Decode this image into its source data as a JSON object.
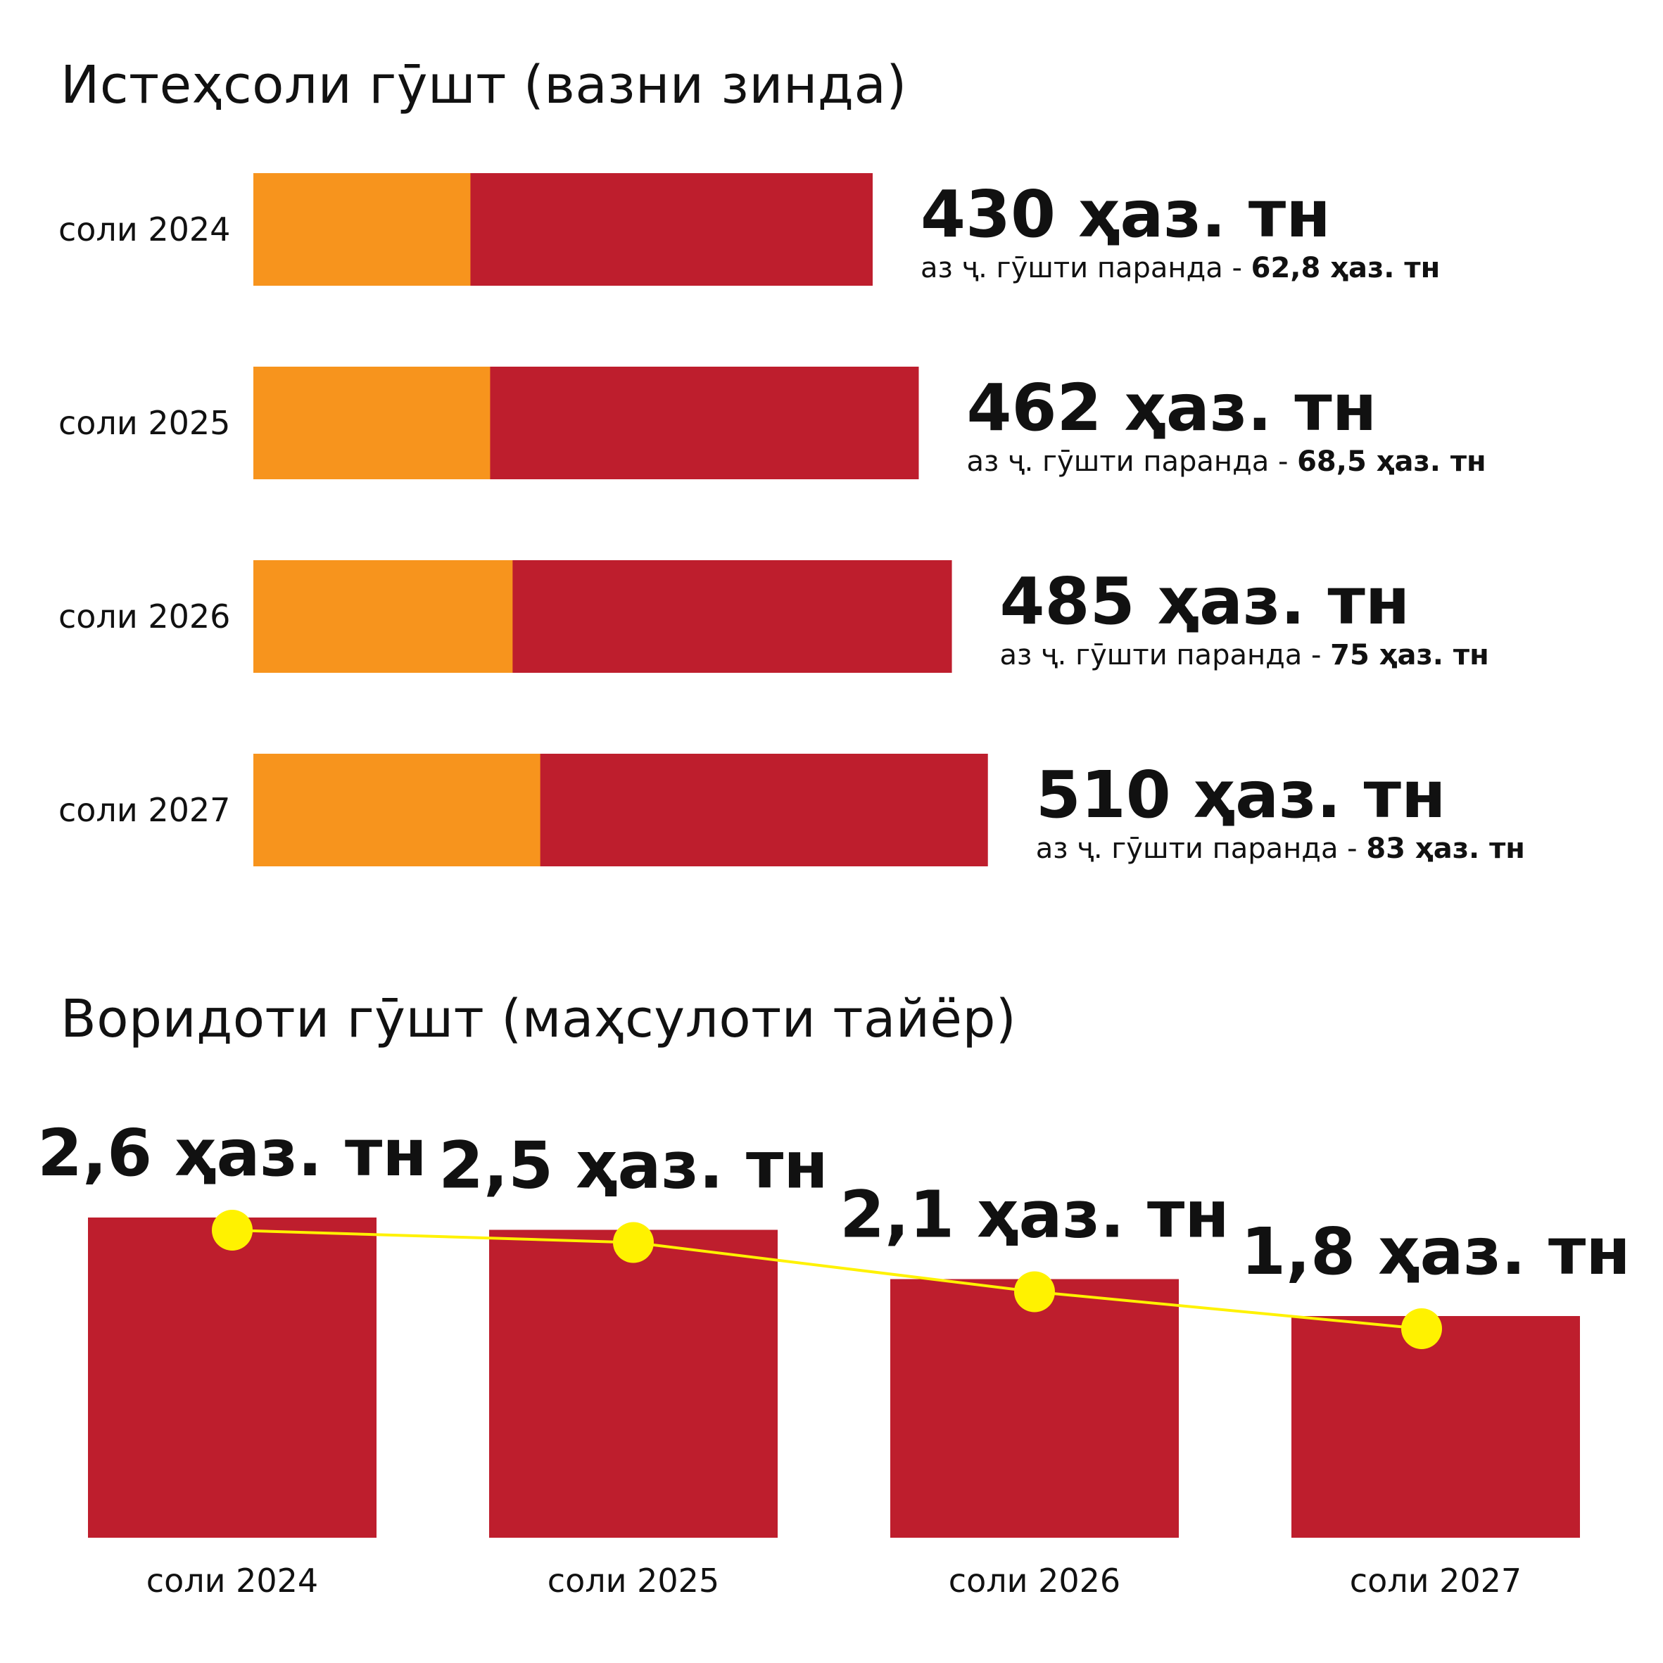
{
  "colors": {
    "red": "#BE1E2D",
    "orange": "#F7941D",
    "yellow": "#FFF200",
    "text": "#111111"
  },
  "chart_data": [
    {
      "type": "bar",
      "orientation": "horizontal",
      "stacked": true,
      "title": "Истеҳсоли гӯшт (вазни зинда)",
      "categories": [
        "соли 2024",
        "соли 2025",
        "соли 2026",
        "соли 2027"
      ],
      "series": [
        {
          "key": "poultry",
          "values": [
            62.8,
            68.5,
            75,
            83
          ]
        },
        {
          "key": "total",
          "values": [
            430,
            462,
            485,
            510
          ]
        }
      ],
      "value_labels": [
        "430 ҳаз. тн",
        "462 ҳаз. тн",
        "485 ҳаз. тн",
        "510 ҳаз. тн"
      ],
      "sub_prefix": "аз ҷ. гӯшти паранда - ",
      "sub_values": [
        "62,8 ҳаз. тн",
        "68,5 ҳаз. тн",
        "75 ҳаз. тн",
        "83 ҳаз. тн"
      ],
      "grid": false
    },
    {
      "type": "bar",
      "orientation": "vertical",
      "overlay_line": true,
      "title": "Воридоти гӯшт (маҳсулоти тайёр)",
      "categories": [
        "соли 2024",
        "соли 2025",
        "соли 2026",
        "соли 2027"
      ],
      "values": [
        2.6,
        2.5,
        2.1,
        1.8
      ],
      "value_labels": [
        "2,6 ҳаз. тн",
        "2,5 ҳаз. тн",
        "2,1 ҳаз. тн",
        "1,8 ҳаз. тн"
      ],
      "grid": false
    }
  ]
}
